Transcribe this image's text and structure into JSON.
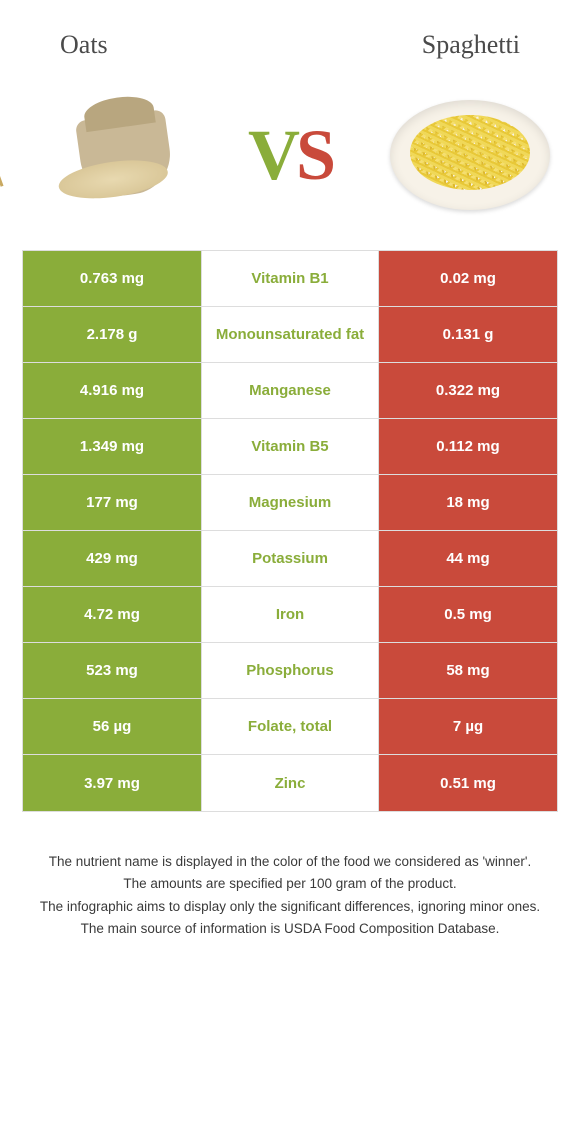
{
  "header": {
    "left_title": "Oats",
    "right_title": "Spaghetti",
    "vs_v": "V",
    "vs_s": "S"
  },
  "colors": {
    "oats_green": "#8aad3a",
    "spaghetti_red": "#c94a3b",
    "row_border": "#dddddd",
    "white": "#ffffff",
    "text_dark": "#3a3a3a"
  },
  "table": {
    "type": "comparison-table",
    "left_bg": "#8aad3a",
    "right_bg": "#c94a3b",
    "left_text": "#ffffff",
    "right_text": "#ffffff",
    "rows": [
      {
        "left": "0.763 mg",
        "label": "Vitamin B1",
        "right": "0.02 mg",
        "winner": "left"
      },
      {
        "left": "2.178 g",
        "label": "Monounsaturated fat",
        "right": "0.131 g",
        "winner": "left"
      },
      {
        "left": "4.916 mg",
        "label": "Manganese",
        "right": "0.322 mg",
        "winner": "left"
      },
      {
        "left": "1.349 mg",
        "label": "Vitamin B5",
        "right": "0.112 mg",
        "winner": "left"
      },
      {
        "left": "177 mg",
        "label": "Magnesium",
        "right": "18 mg",
        "winner": "left"
      },
      {
        "left": "429 mg",
        "label": "Potassium",
        "right": "44 mg",
        "winner": "left"
      },
      {
        "left": "4.72 mg",
        "label": "Iron",
        "right": "0.5 mg",
        "winner": "left"
      },
      {
        "left": "523 mg",
        "label": "Phosphorus",
        "right": "58 mg",
        "winner": "left"
      },
      {
        "left": "56 µg",
        "label": "Folate, total",
        "right": "7 µg",
        "winner": "left"
      },
      {
        "left": "3.97 mg",
        "label": "Zinc",
        "right": "0.51 mg",
        "winner": "left"
      }
    ]
  },
  "footer": {
    "line1": "The nutrient name is displayed in the color of the food we considered as 'winner'.",
    "line2": "The amounts are specified per 100 gram of the product.",
    "line3": "The infographic aims to display only the significant differences, ignoring minor ones.",
    "line4": "The main source of information is USDA Food Composition Database."
  }
}
